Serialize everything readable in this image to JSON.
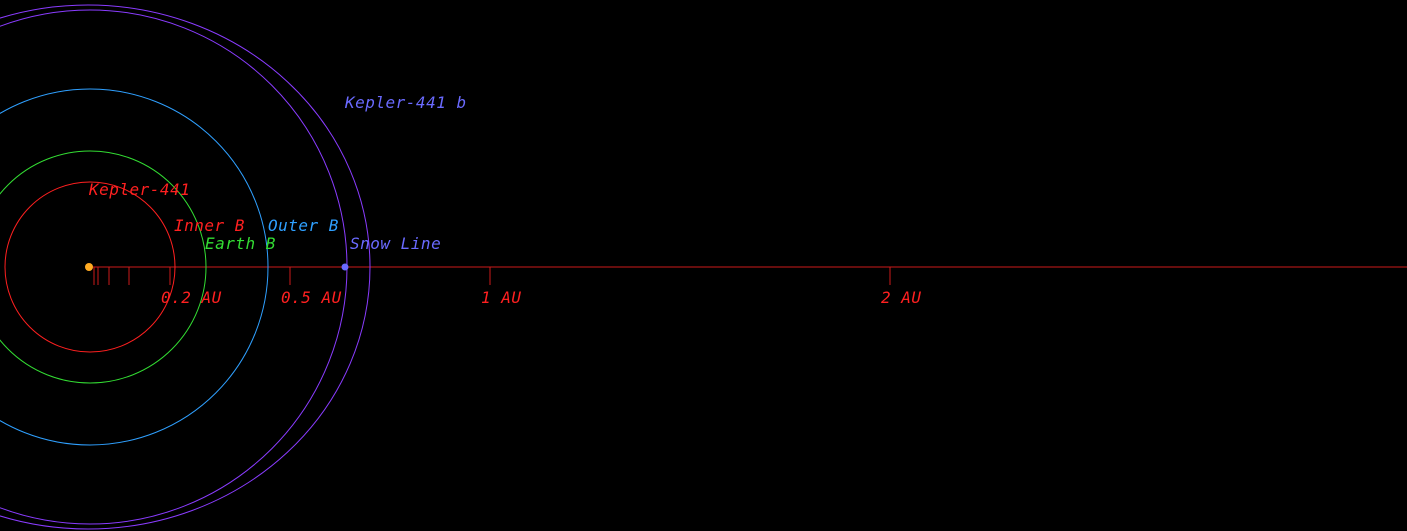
{
  "diagram": {
    "star": {
      "name": "Kepler-441",
      "color": "#ff2020"
    },
    "planet": {
      "name": "Kepler-441 b",
      "color": "#6a6aff"
    },
    "zones": {
      "inner_b": {
        "label": "Inner B",
        "color": "#ff2020"
      },
      "earth_b": {
        "label": "Earth B",
        "color": "#33dd33"
      },
      "outer_b": {
        "label": "Outer B",
        "color": "#2fa0ff"
      },
      "snow_line": {
        "label": "Snow Line",
        "color": "#6a6aff"
      }
    },
    "axis": {
      "color": "#cc1a1a",
      "ticks": [
        {
          "au": 0.2,
          "label": "0.2 AU"
        },
        {
          "au": 0.5,
          "label": "0.5 AU"
        },
        {
          "au": 1,
          "label": "1 AU"
        },
        {
          "au": 2,
          "label": "2 AU"
        }
      ]
    },
    "colors": {
      "background": "#000000",
      "star_dot": "#ffaa22",
      "planet_orbit": "#8a3cff",
      "outer_orbit": "#2fa0ff",
      "earth_orbit": "#33dd33",
      "inner_orbit": "#ff2020",
      "snow_orbit": "#8a3cff"
    }
  }
}
